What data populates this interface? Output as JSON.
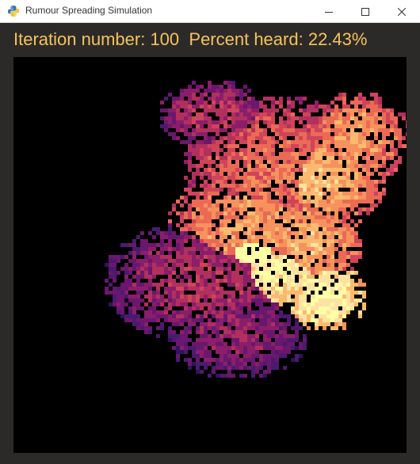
{
  "window": {
    "title": "Rumour Spreading Simulation",
    "app_icon": "python-icon",
    "controls": {
      "minimize": "minimize-icon",
      "maximize": "maximize-icon",
      "close": "close-icon"
    }
  },
  "status": {
    "iteration_label": "Iteration number:",
    "iteration_value": 100,
    "percent_label": "Percent heard:",
    "percent_value": "22.43%",
    "text_color": "#f6c35d"
  },
  "simulation": {
    "background": "#000000",
    "colormap": [
      "#1b0c41",
      "#31135e",
      "#4b1a6e",
      "#6a176e",
      "#8b1e6a",
      "#b1305e",
      "#d0445a",
      "#ea6a56",
      "#f7925c",
      "#fbba6f",
      "#fde2a3",
      "#fcffa4"
    ]
  }
}
